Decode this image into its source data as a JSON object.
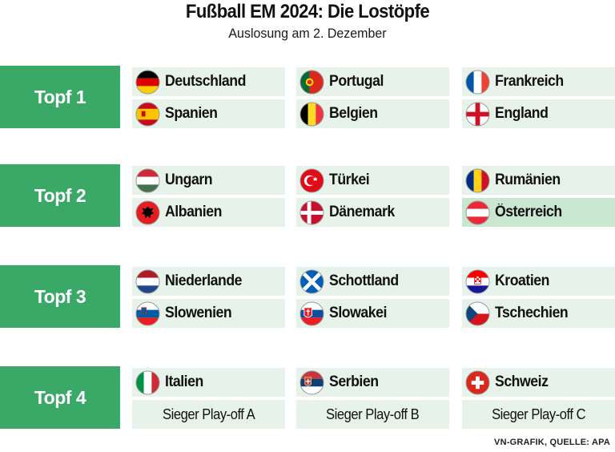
{
  "header": {
    "title": "Fußball EM 2024: Die Lostöpfe",
    "subtitle": "Auslosung am 2. Dezember"
  },
  "pots": [
    {
      "label": "Topf 1",
      "teams": [
        {
          "name": "Deutschland",
          "flag": "germany-flag-icon"
        },
        {
          "name": "Portugal",
          "flag": "portugal-flag-icon"
        },
        {
          "name": "Frankreich",
          "flag": "france-flag-icon"
        },
        {
          "name": "Spanien",
          "flag": "spain-flag-icon"
        },
        {
          "name": "Belgien",
          "flag": "belgium-flag-icon"
        },
        {
          "name": "England",
          "flag": "england-flag-icon"
        }
      ]
    },
    {
      "label": "Topf 2",
      "teams": [
        {
          "name": "Ungarn",
          "flag": "hungary-flag-icon"
        },
        {
          "name": "Türkei",
          "flag": "turkey-flag-icon"
        },
        {
          "name": "Rumänien",
          "flag": "romania-flag-icon"
        },
        {
          "name": "Albanien",
          "flag": "albania-flag-icon"
        },
        {
          "name": "Dänemark",
          "flag": "denmark-flag-icon"
        },
        {
          "name": "Österreich",
          "flag": "austria-flag-icon"
        }
      ]
    },
    {
      "label": "Topf 3",
      "teams": [
        {
          "name": "Niederlande",
          "flag": "netherlands-flag-icon"
        },
        {
          "name": "Schottland",
          "flag": "scotland-flag-icon"
        },
        {
          "name": "Kroatien",
          "flag": "croatia-flag-icon"
        },
        {
          "name": "Slowenien",
          "flag": "slovenia-flag-icon"
        },
        {
          "name": "Slowakei",
          "flag": "slovakia-flag-icon"
        },
        {
          "name": "Tschechien",
          "flag": "czechia-flag-icon"
        }
      ]
    },
    {
      "label": "Topf 4",
      "teams": [
        {
          "name": "Italien",
          "flag": "italy-flag-icon"
        },
        {
          "name": "Serbien",
          "flag": "serbia-flag-icon"
        },
        {
          "name": "Schweiz",
          "flag": "switzerland-flag-icon"
        },
        {
          "name": "Sieger Play-off A"
        },
        {
          "name": "Sieger Play-off B"
        },
        {
          "name": "Sieger Play-off C"
        }
      ]
    }
  ],
  "highlighted_team": "Österreich",
  "colors": {
    "pot_label": "#3aa968",
    "cell": "#e7f3ea",
    "highlight": "#c9e6d1"
  },
  "source": "VN-GRAFIK, QUELLE: APA"
}
